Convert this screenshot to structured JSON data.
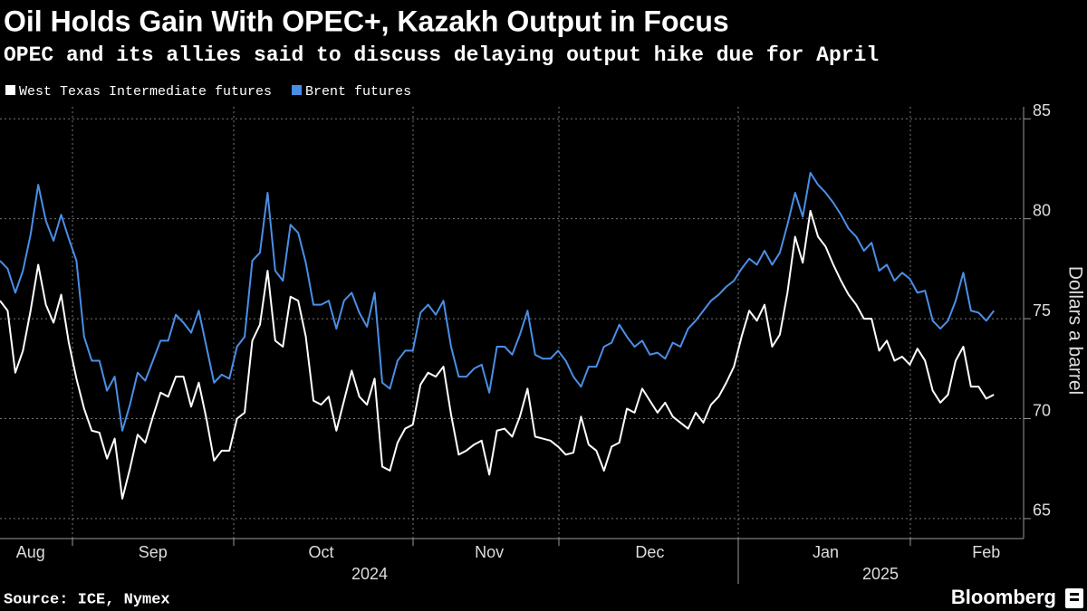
{
  "chart_data": {
    "type": "line",
    "title": "Oil Holds Gain With OPEC+, Kazakh Output in Focus",
    "subtitle": "OPEC and its allies said to discuss delaying output hike due for April",
    "y_axis_label": "Dollars a barrel",
    "source": "Source: ICE, Nymex",
    "brand": "Bloomberg",
    "x_groups": [
      "2024",
      "2025"
    ],
    "categories": [
      null,
      null,
      null,
      null,
      "Aug",
      null,
      null,
      null,
      null,
      null,
      null,
      null,
      null,
      null,
      null,
      null,
      null,
      null,
      null,
      null,
      "Sep",
      null,
      null,
      null,
      null,
      null,
      null,
      null,
      null,
      null,
      null,
      null,
      null,
      null,
      null,
      null,
      null,
      null,
      null,
      null,
      null,
      null,
      "Oct",
      null,
      null,
      null,
      null,
      null,
      null,
      null,
      null,
      null,
      null,
      null,
      null,
      null,
      null,
      null,
      null,
      null,
      null,
      null,
      null,
      null,
      "Nov",
      null,
      null,
      null,
      null,
      null,
      null,
      null,
      null,
      null,
      null,
      null,
      null,
      null,
      null,
      null,
      null,
      null,
      null,
      null,
      null,
      "Dec",
      null,
      null,
      null,
      null,
      null,
      null,
      null,
      null,
      null,
      null,
      null,
      null,
      null,
      null,
      null,
      null,
      null,
      null,
      null,
      null,
      null,
      null,
      "Jan",
      null,
      null,
      null,
      null,
      null,
      null,
      null,
      null,
      null,
      null,
      null,
      null,
      null,
      null,
      null,
      null,
      null,
      null,
      null,
      null,
      "Feb",
      null
    ],
    "series": [
      {
        "name": "West Texas Intermediate futures",
        "color": "#ffffff",
        "values": [
          75.9,
          75.4,
          72.3,
          73.4,
          75.4,
          77.7,
          75.7,
          74.8,
          76.2,
          73.8,
          72.0,
          70.5,
          69.4,
          69.3,
          68.0,
          69.0,
          66.0,
          67.5,
          69.2,
          68.8,
          70.1,
          71.3,
          71.1,
          72.1,
          72.1,
          70.6,
          71.8,
          70.0,
          67.9,
          68.4,
          68.4,
          70.0,
          70.3,
          73.9,
          74.7,
          77.4,
          73.9,
          73.6,
          76.1,
          75.9,
          74.1,
          70.9,
          70.7,
          71.1,
          69.4,
          70.9,
          72.4,
          71.1,
          70.7,
          72.0,
          67.6,
          67.4,
          68.8,
          69.5,
          69.7,
          71.7,
          72.3,
          72.1,
          72.6,
          70.2,
          68.2,
          68.4,
          68.7,
          68.9,
          67.2,
          69.4,
          69.5,
          69.1,
          70.1,
          71.5,
          69.1,
          69.0,
          68.9,
          68.6,
          68.2,
          68.3,
          70.1,
          68.7,
          68.4,
          67.4,
          68.6,
          68.8,
          70.5,
          70.3,
          71.5,
          70.9,
          70.3,
          70.8,
          70.1,
          69.8,
          69.5,
          70.3,
          69.8,
          70.7,
          71.1,
          71.8,
          72.6,
          74.1,
          75.4,
          74.9,
          75.7,
          73.6,
          74.2,
          76.3,
          79.1,
          77.8,
          80.4,
          79.1,
          78.6,
          77.7,
          76.9,
          76.2,
          75.7,
          75.0,
          75.0,
          73.4,
          73.9,
          72.9,
          73.1,
          72.7,
          73.5,
          72.9,
          71.4,
          70.8,
          71.2,
          72.9,
          73.6,
          71.6,
          71.6,
          71.0,
          71.2
        ]
      },
      {
        "name": "Brent futures",
        "color": "#4a8fe7",
        "values": [
          77.9,
          77.5,
          76.3,
          77.4,
          79.2,
          81.7,
          79.9,
          78.9,
          80.2,
          79.0,
          77.9,
          74.1,
          72.9,
          72.9,
          71.4,
          72.1,
          69.4,
          70.7,
          72.3,
          71.9,
          72.9,
          73.9,
          73.9,
          75.2,
          74.8,
          74.3,
          75.4,
          73.6,
          71.8,
          72.2,
          72.0,
          73.6,
          74.1,
          77.9,
          78.3,
          81.3,
          77.4,
          76.9,
          79.7,
          79.3,
          77.8,
          75.7,
          75.7,
          75.9,
          74.5,
          75.9,
          76.3,
          75.3,
          74.6,
          76.3,
          71.8,
          71.5,
          72.9,
          73.4,
          73.4,
          75.3,
          75.7,
          75.2,
          75.9,
          73.6,
          72.1,
          72.1,
          72.5,
          72.7,
          71.3,
          73.6,
          73.6,
          73.2,
          74.2,
          75.4,
          73.2,
          73.0,
          73.0,
          73.4,
          72.9,
          72.1,
          71.6,
          72.6,
          72.6,
          73.6,
          73.8,
          74.7,
          74.1,
          73.6,
          73.9,
          73.2,
          73.3,
          73.0,
          73.8,
          73.6,
          74.5,
          74.9,
          75.4,
          75.9,
          76.2,
          76.6,
          76.9,
          77.5,
          78.0,
          77.7,
          78.4,
          77.7,
          78.3,
          79.7,
          81.3,
          80.1,
          82.3,
          81.7,
          81.3,
          80.8,
          80.2,
          79.5,
          79.1,
          78.4,
          78.8,
          77.4,
          77.7,
          76.9,
          77.3,
          77.0,
          76.3,
          76.4,
          74.9,
          74.5,
          74.9,
          75.9,
          77.3,
          75.4,
          75.3,
          74.9,
          75.4
        ]
      }
    ],
    "ylim": [
      64,
      85.6
    ],
    "yticks": [
      65,
      70,
      75,
      80,
      85
    ],
    "grid": true,
    "legend": "top-left"
  }
}
